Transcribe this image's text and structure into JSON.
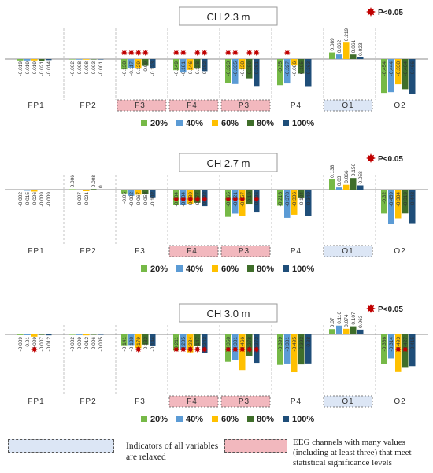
{
  "chart_data": [
    {
      "type": "bar",
      "title": "CH 2.3 m",
      "significance_label": "P<0.05",
      "channels": [
        "FP1",
        "FP2",
        "F3",
        "F4",
        "P3",
        "P4",
        "O1",
        "O2"
      ],
      "series_names": [
        "20%",
        "40%",
        "60%",
        "80%",
        "100%"
      ],
      "values": {
        "FP1": [
          -0.019,
          -0.019,
          -0.019,
          -0.021,
          -0.014
        ],
        "FP2": [
          -0.002,
          -0.008,
          -0.008,
          -0.003,
          -0.001
        ],
        "F3": [
          -0.138,
          -0.117,
          -0.129,
          -0.09,
          -0.123
        ],
        "F4": [
          -0.149,
          -0.181,
          -0.146,
          -0.128,
          -0.162
        ],
        "P3": [
          -0.323,
          -0.335,
          -0.138,
          -0.259,
          -0.361
        ],
        "P4": [
          -0.35,
          -0.327,
          -0.086,
          -0.195,
          -0.363
        ],
        "O1": [
          0.089,
          0.062,
          0.219,
          0.061,
          0.023
        ],
        "O2": [
          -0.454,
          -0.444,
          -0.338,
          -0.404,
          -0.466
        ]
      },
      "significant": {
        "F3": [
          1,
          1,
          1,
          1,
          0
        ],
        "F4": [
          1,
          1,
          0,
          1,
          1
        ],
        "P3": [
          1,
          1,
          0,
          1,
          1
        ],
        "P4": [
          0,
          1,
          0,
          0,
          0
        ]
      },
      "relaxed_channels": [
        "O1"
      ],
      "many_significant_channels": [
        "F3",
        "F4",
        "P3"
      ]
    },
    {
      "type": "bar",
      "title": "CH 2.7 m",
      "significance_label": "P<0.05",
      "channels": [
        "FP1",
        "FP2",
        "F3",
        "F4",
        "P3",
        "P4",
        "O1",
        "O2"
      ],
      "series_names": [
        "20%",
        "40%",
        "60%",
        "80%",
        "100%"
      ],
      "values": {
        "FP1": [
          -0.002,
          -0.015,
          -0.026,
          -0.009,
          -0.009
        ],
        "FP2": [
          0.006,
          -0.007,
          -0.021,
          0.008,
          0
        ],
        "F3": [
          -0.05,
          -0.082,
          -0.067,
          -0.058,
          -0.102
        ],
        "F4": [
          -0.204,
          -0.204,
          -0.189,
          -0.177,
          -0.222
        ],
        "P3": [
          -0.365,
          -0.321,
          -0.357,
          -0.19,
          -0.306
        ],
        "P4": [
          -0.216,
          -0.378,
          -0.336,
          -0.104,
          -0.349
        ],
        "O1": [
          0.138,
          0.03,
          0.066,
          0.156,
          0.058
        ],
        "O2": [
          -0.32,
          -0.459,
          -0.384,
          -0.319,
          -0.448
        ]
      },
      "significant": {
        "F4": [
          1,
          1,
          1,
          1,
          1
        ],
        "P3": [
          1,
          1,
          1,
          0,
          1
        ]
      },
      "relaxed_channels": [
        "O1"
      ],
      "many_significant_channels": [
        "F4",
        "P3"
      ]
    },
    {
      "type": "bar",
      "title": "CH 3.0 m",
      "significance_label": "P<0.05",
      "channels": [
        "FP1",
        "FP2",
        "F3",
        "F4",
        "P3",
        "P4",
        "O1",
        "O2"
      ],
      "series_names": [
        "20%",
        "40%",
        "60%",
        "80%",
        "100%"
      ],
      "values": {
        "FP1": [
          -0.009,
          -0.01,
          -0.029,
          -0.007,
          -0.012
        ],
        "FP2": [
          -0.002,
          -0.009,
          -0.012,
          -0.006,
          -0.005
        ],
        "F3": [
          -0.141,
          -0.138,
          -0.179,
          -0.132,
          -0.144
        ],
        "F4": [
          -0.211,
          -0.205,
          -0.234,
          -0.147,
          -0.243
        ],
        "P3": [
          -0.358,
          -0.331,
          -0.466,
          -0.278,
          -0.372
        ],
        "P4": [
          -0.399,
          -0.381,
          -0.495,
          -0.393,
          -0.38
        ],
        "O1": [
          0.07,
          0.116,
          0.074,
          0.107,
          0.063
        ],
        "O2": [
          -0.386,
          -0.314,
          -0.493,
          -0.427,
          -0.415
        ]
      },
      "significant": {
        "FP1": [
          0,
          0,
          1,
          0,
          0
        ],
        "F3": [
          0,
          0,
          1,
          0,
          0
        ],
        "F4": [
          1,
          1,
          1,
          1,
          1
        ],
        "P3": [
          1,
          1,
          1,
          1,
          1
        ],
        "O2": [
          0,
          0,
          1,
          1,
          0
        ]
      },
      "relaxed_channels": [
        "O1"
      ],
      "many_significant_channels": [
        "F4",
        "P3"
      ]
    }
  ],
  "colors": {
    "series": [
      "#76b947",
      "#5b9bd5",
      "#ffc000",
      "#3f6e2a",
      "#1f4e79"
    ],
    "star": "#c00000",
    "relaxed_fill": "#dce6f5",
    "many_fill": "#f2b8be",
    "axis": "#8c8c8c"
  },
  "legend": {
    "relaxed_text": "Indicators of all variables are relaxed",
    "many_text": "EEG channels with many values (including at least three) that meet statistical significance levels"
  }
}
